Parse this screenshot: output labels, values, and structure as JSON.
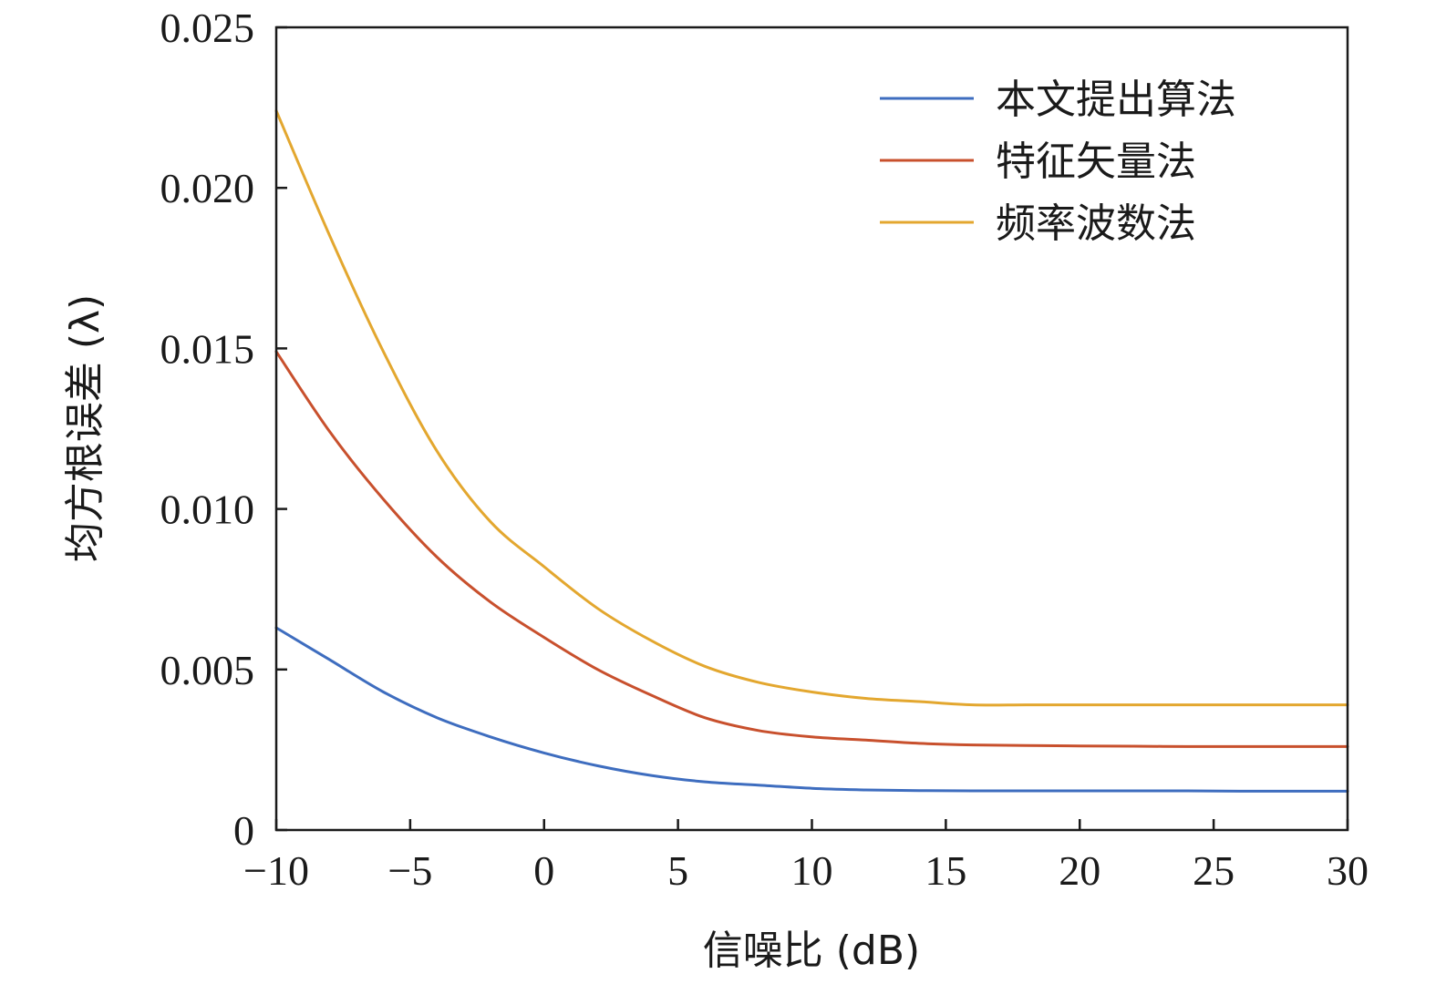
{
  "chart_data": {
    "type": "line",
    "title": "",
    "xlabel": "信噪比 (dB)",
    "ylabel": "均方根误差 (λ)",
    "xlim": [
      -10,
      30
    ],
    "ylim": [
      0,
      0.025
    ],
    "x_ticks": [
      -10,
      -5,
      0,
      5,
      10,
      15,
      20,
      25,
      30
    ],
    "x_tick_labels": [
      "−10",
      "−5",
      "0",
      "5",
      "10",
      "15",
      "20",
      "25",
      "30"
    ],
    "y_ticks": [
      0,
      0.005,
      0.01,
      0.015,
      0.02,
      0.025
    ],
    "y_tick_labels": [
      "0",
      "0.005",
      "0.010",
      "0.015",
      "0.020",
      "0.025"
    ],
    "grid": false,
    "legend_position": "top-right",
    "x": [
      -10,
      -8,
      -6,
      -4,
      -2,
      0,
      2,
      4,
      6,
      8,
      10,
      12,
      14,
      16,
      18,
      20,
      22,
      24,
      26,
      28,
      30
    ],
    "series": [
      {
        "name": "本文提出算法",
        "color": "#3e6dbf",
        "values": [
          0.0063,
          0.0053,
          0.0043,
          0.0035,
          0.0029,
          0.0024,
          0.002,
          0.0017,
          0.0015,
          0.0014,
          0.0013,
          0.00125,
          0.00123,
          0.00122,
          0.00122,
          0.00122,
          0.00122,
          0.00122,
          0.00121,
          0.00121,
          0.00121
        ]
      },
      {
        "name": "特征矢量法",
        "color": "#c8502d",
        "values": [
          0.0149,
          0.0124,
          0.0103,
          0.0085,
          0.0071,
          0.006,
          0.005,
          0.0042,
          0.0035,
          0.0031,
          0.0029,
          0.0028,
          0.0027,
          0.00265,
          0.00263,
          0.00262,
          0.00261,
          0.0026,
          0.0026,
          0.0026,
          0.0026
        ]
      },
      {
        "name": "频率波数法",
        "color": "#e3a72f",
        "values": [
          0.0224,
          0.0185,
          0.0149,
          0.0118,
          0.0096,
          0.0082,
          0.0069,
          0.0059,
          0.0051,
          0.0046,
          0.0043,
          0.0041,
          0.004,
          0.0039,
          0.0039,
          0.0039,
          0.0039,
          0.0039,
          0.0039,
          0.0039,
          0.0039
        ]
      }
    ]
  }
}
